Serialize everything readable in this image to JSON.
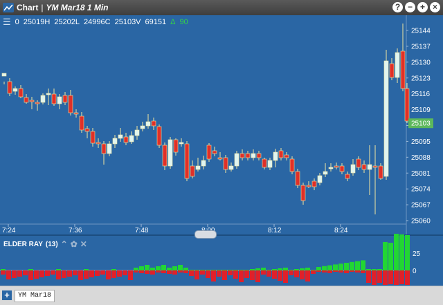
{
  "window": {
    "title": "Chart",
    "subtitle": "YM Mar18 1 Min",
    "buttons": [
      "?",
      "−",
      "+",
      "×"
    ]
  },
  "header": {
    "menu_icon": "hamburger-icon",
    "open": "0",
    "high": "25019H",
    "low": "25202L",
    "close": "24996C",
    "last": "25103V",
    "volume": "69151",
    "change_symbol": "Δ",
    "change": "90"
  },
  "price_axis": {
    "ticks": [
      "25144",
      "25137",
      "25130",
      "25123",
      "25116",
      "25109",
      "25102",
      "25095",
      "25088",
      "25081",
      "25074",
      "25067",
      "25060"
    ],
    "current_label": "25103"
  },
  "time_axis": {
    "ticks": [
      "7:24",
      "7:36",
      "7:48",
      "8:00",
      "8:12",
      "8:24"
    ]
  },
  "indicator": {
    "title": "ELDER RAY",
    "period": "(13)",
    "axis_ticks": [
      "25",
      "0"
    ]
  },
  "bottom": {
    "add_label": "+",
    "symbol_tab": "YM Mar18"
  },
  "colors": {
    "background": "#2a66a4",
    "up_candle": "#e0f5f0",
    "down_candle": "#e03028",
    "bull_power": "#22d633",
    "bear_power": "#e0202a",
    "current_price": "#5cb85c"
  }
}
